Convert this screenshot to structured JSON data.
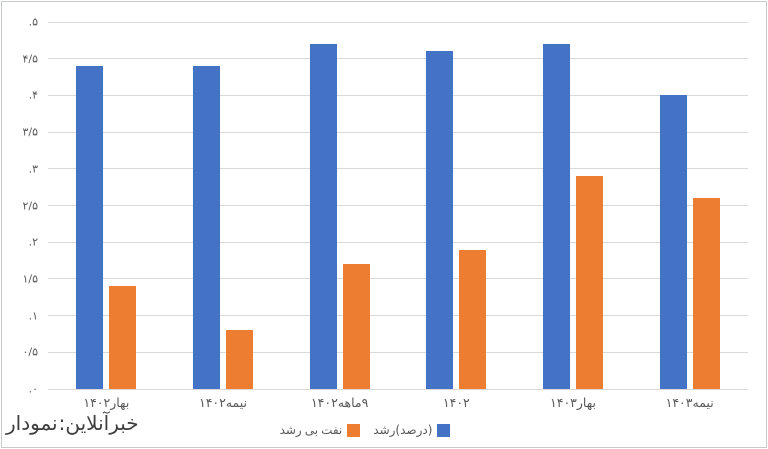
{
  "chart_data": {
    "type": "bar",
    "title": "",
    "categories": [
      "بهار۱۴۰۲",
      "نیمه۱۴۰۲",
      "۹ماهه۱۴۰۲",
      "۱۴۰۲",
      "بهار۱۴۰۳",
      "نیمه۱۴۰۳"
    ],
    "categories_display_tokens": [
      [
        "۱۴۰۲",
        "بهار"
      ],
      [
        "۱۴۰۲",
        "نیمه"
      ],
      [
        "۱۴۰۲",
        "ماهه",
        "۹"
      ],
      [
        "۱۴۰۲"
      ],
      [
        "۱۴۰۳",
        "بهار"
      ],
      [
        "۱۴۰۳",
        "نیمه"
      ]
    ],
    "series": [
      {
        "name": "رشد(درصد)",
        "name_tokens": [
          "رشد",
          "(درصد)"
        ],
        "color": "#4472C4",
        "values": [
          4.4,
          4.4,
          4.7,
          4.6,
          4.7,
          4.0
        ]
      },
      {
        "name": "رشد بی نفت",
        "name_tokens": [
          "رشد",
          "بی",
          "نفت"
        ],
        "color": "#ED7D31",
        "values": [
          1.4,
          0.8,
          1.7,
          1.9,
          2.9,
          2.6
        ]
      }
    ],
    "ylim": [
      0,
      5
    ],
    "ytick_step": 0.5,
    "yticks_display": [
      ".۰",
      "۰/۵",
      ".۱",
      "۱/۵",
      ".۲",
      "۲/۵",
      ".۳",
      "۳/۵",
      ".۴",
      "۴/۵",
      ".۵"
    ],
    "grid": true,
    "legend_position": "bottom",
    "xlabel": "",
    "ylabel": ""
  },
  "footer": {
    "text": "نمودار: خبرآنلاین",
    "tokens": [
      "نمودار",
      ":",
      "خبرآنلاین"
    ]
  },
  "colors": {
    "bar_blue": "#4472C4",
    "bar_orange": "#ED7D31",
    "gridline": "#d9d9d9",
    "axis_text": "#595959",
    "footer_text": "#3f3f3f",
    "border": "#c7caca"
  }
}
